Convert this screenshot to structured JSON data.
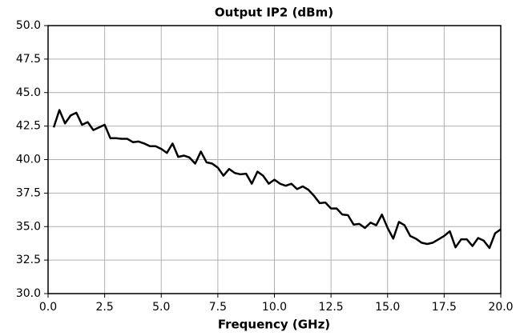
{
  "chart_data": {
    "type": "line",
    "title": "Output IP2 (dBm)",
    "xlabel": "Frequency (GHz)",
    "x": [
      0.25,
      0.5,
      0.75,
      1.0,
      1.25,
      1.5,
      1.75,
      2.0,
      2.25,
      2.5,
      2.75,
      3.0,
      3.25,
      3.5,
      3.75,
      4.0,
      4.25,
      4.5,
      4.75,
      5.0,
      5.25,
      5.5,
      5.75,
      6.0,
      6.25,
      6.5,
      6.75,
      7.0,
      7.25,
      7.5,
      7.75,
      8.0,
      8.25,
      8.5,
      8.75,
      9.0,
      9.25,
      9.5,
      9.75,
      10.0,
      10.25,
      10.5,
      10.75,
      11.0,
      11.25,
      11.5,
      11.75,
      12.0,
      12.25,
      12.5,
      12.75,
      13.0,
      13.25,
      13.5,
      13.75,
      14.0,
      14.25,
      14.5,
      14.75,
      15.0,
      15.25,
      15.5,
      15.75,
      16.0,
      16.25,
      16.5,
      16.75,
      17.0,
      17.25,
      17.5,
      17.75,
      18.0,
      18.25,
      18.5,
      18.75,
      19.0,
      19.25,
      19.5,
      19.75,
      20.0
    ],
    "series": [
      {
        "name": "Output IP2",
        "color": "#000000",
        "values": [
          42.4,
          43.7,
          42.7,
          43.3,
          43.5,
          42.6,
          42.8,
          42.2,
          42.4,
          42.6,
          41.6,
          41.6,
          41.55,
          41.55,
          41.3,
          41.35,
          41.2,
          41.0,
          41.0,
          40.8,
          40.5,
          41.2,
          40.2,
          40.3,
          40.15,
          39.7,
          40.6,
          39.8,
          39.7,
          39.4,
          38.8,
          39.3,
          39.0,
          38.9,
          38.95,
          38.2,
          39.1,
          38.8,
          38.2,
          38.5,
          38.2,
          38.05,
          38.2,
          37.8,
          38.0,
          37.75,
          37.3,
          36.75,
          36.8,
          36.35,
          36.35,
          35.9,
          35.85,
          35.15,
          35.2,
          34.9,
          35.3,
          35.1,
          35.9,
          34.9,
          34.1,
          35.35,
          35.1,
          34.3,
          34.1,
          33.8,
          33.7,
          33.8,
          34.05,
          34.3,
          34.65,
          33.45,
          34.05,
          34.05,
          33.55,
          34.15,
          33.95,
          33.4,
          34.5,
          34.8
        ]
      }
    ],
    "xlim": [
      0,
      20
    ],
    "ylim": [
      30,
      50
    ],
    "xticks": [
      {
        "value": 0,
        "label": "0.0"
      },
      2.5,
      {
        "value": 5,
        "label": "5.0"
      },
      7.5,
      {
        "value": 10,
        "label": "10.0"
      },
      12.5,
      {
        "value": 15,
        "label": "15.0"
      },
      17.5,
      {
        "value": 20,
        "label": "20.0"
      }
    ],
    "yticks": [
      {
        "value": 30,
        "label": "30.0"
      },
      32.5,
      {
        "value": 35,
        "label": "35.0"
      },
      37.5,
      {
        "value": 40,
        "label": "40.0"
      },
      42.5,
      {
        "value": 45,
        "label": "45.0"
      },
      47.5,
      {
        "value": 50,
        "label": "50.0"
      }
    ],
    "grid": true
  }
}
